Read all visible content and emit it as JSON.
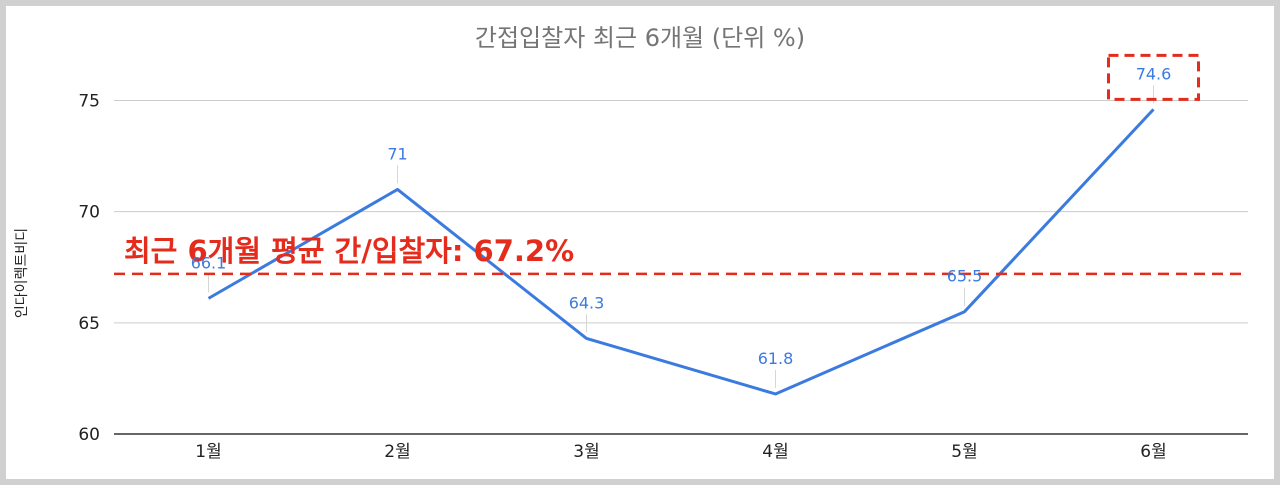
{
  "chart_data": {
    "type": "line",
    "title": "간접입찰자 최근 6개월 (단위 %)",
    "ylabel": "인다이렉트비디",
    "xlabel": "",
    "categories": [
      "1월",
      "2월",
      "3월",
      "4월",
      "5월",
      "6월"
    ],
    "series": [
      {
        "values": [
          66.1,
          71,
          64.3,
          61.8,
          65.5,
          74.6
        ],
        "color": "#3b7be0"
      }
    ],
    "data_labels": [
      "66.1",
      "71",
      "64.3",
      "61.8",
      "65.5",
      "74.6"
    ],
    "ylim": [
      60,
      77
    ],
    "yticks": [
      60,
      65,
      70,
      75
    ],
    "ytick_labels": [
      "60",
      "65",
      "70",
      "75"
    ],
    "grid": true,
    "reference_line": {
      "value": 67.2,
      "label": "최근 6개월 평균 간/입찰자: 67.2%",
      "color": "#e42b1c"
    },
    "highlight_index": 5,
    "highlight_color": "#e42b1c"
  }
}
